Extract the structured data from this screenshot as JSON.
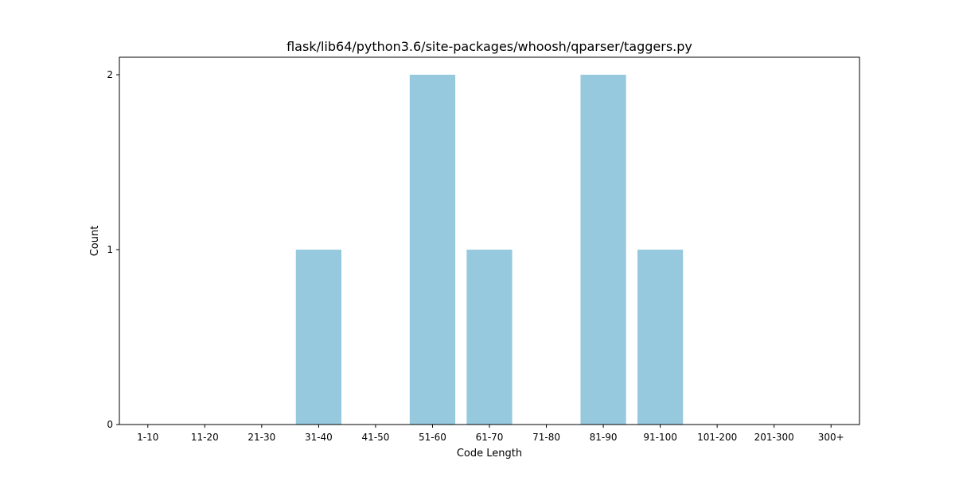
{
  "chart_data": {
    "type": "bar",
    "title": "flask/lib64/python3.6/site-packages/whoosh/qparser/taggers.py",
    "xlabel": "Code Length",
    "ylabel": "Count",
    "categories": [
      "1-10",
      "11-20",
      "21-30",
      "31-40",
      "41-50",
      "51-60",
      "61-70",
      "71-80",
      "81-90",
      "91-100",
      "101-200",
      "201-300",
      "300+"
    ],
    "values": [
      0,
      0,
      0,
      1,
      0,
      2,
      1,
      0,
      2,
      1,
      0,
      0,
      0
    ],
    "ylim": [
      0,
      2.1
    ],
    "yticks": [
      0,
      1,
      2
    ],
    "grid": false,
    "bar_color": "#96c9dd"
  }
}
